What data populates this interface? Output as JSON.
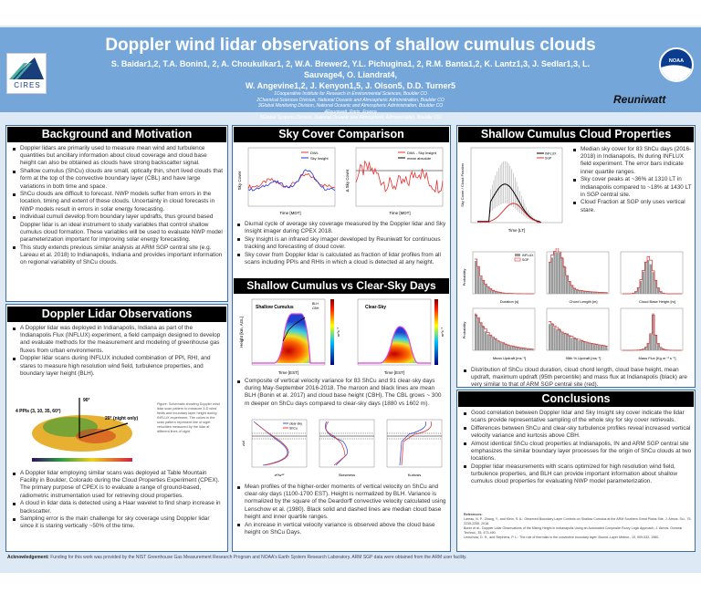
{
  "header": {
    "title": "Doppler wind lidar observations of shallow cumulus clouds",
    "authors_line1": "S. Baidar1,2, T.A. Bonin1, 2, A. Choukulkar1, 2, W.A. Brewer2, Y.L. Pichugina1, 2, R.M. Banta1,2, K. Lantz1,3, J. Sedlar1,3, L. Sauvage4, O. Liandrat4,",
    "authors_line2": "W. Angevine1,2, J. Kenyon1,5, J. Olson5, D.D. Turner5",
    "affiliations": [
      "1Cooperative Institute for Research in Environmental Sciences, Boulder CO",
      "2Chemical Sciences Division, National Oceanic and Atmospheric Administration, Boulder CO",
      "3Global Monitoring Division, National Oceanic and Atmospheric Administration, Boulder CO",
      "4Reuniwatt, Paris, France",
      "5Global Systems Division, National Oceanic and Atmospheric Administration, Boulder CO"
    ],
    "logos": {
      "cires": "CIRES",
      "noaa": "NOAA",
      "reuniwatt": "Reuniwatt"
    }
  },
  "background": {
    "title": "Background and Motivation",
    "bullets": [
      "Doppler lidars are primarily used to measure mean wind and turbulence quantities but ancillary information about cloud coverage and cloud base height can also be obtained as clouds have strong backscatter signal.",
      "Shallow cumulus (ShCu) clouds are small, optically thin, short lived clouds that form at the top of the convective boundary layer (CBL) and have large variations in both time and space.",
      "ShCu clouds are difficult to forecast. NWP models suffer from errors in the location, timing and extent of these clouds. Uncertainty in cloud forecasts in NWP models result in errors in solar energy forecasting.",
      "Individual cumuli develop from boundary layer updrafts, thus ground based Doppler lidar is an ideal instrument to study variables that control shallow cumulus cloud formation. These variables will be used to evaluate NWP model parameterization important for improving solar energy forecasting.",
      "This study extends previous similar analysis at ARM SGP central site (e.g. Lareau et al. 2018) to Indianapolis, Indiana and provides important information on regional variability of ShCu clouds."
    ]
  },
  "lidar": {
    "title": "Doppler Lidar Observations",
    "bullets_top": [
      "A Doppler lidar was deployed in Indianapolis, Indiana as part of the Indianapolis Flux (INFLUX) experiment, a field campaign designed to develop and evaluate methods for the measurement and modeling of greenhouse gas fluxes from urban environments.",
      "Doppler lidar scans during INFLUX included combination of PPI, RHI, and stares to measure high resolution wind field, turbulence properties, and boundary layer height (BLH)."
    ],
    "figure_labels": {
      "ppis": "4 PPIs (3, 10, 35, 60°)",
      "vertical": "90°",
      "night": "20° (night only)"
    },
    "caption": "Figure: Schematic showing Doppler wind lidar scan pattern to measure 3-D wind fields and boundary layer height during INFLUX experiment. The colors in the scan pattern represent line of sight velocities measured by the lidar at different lines of sight.",
    "bullets_bottom": [
      "A Doppler lidar employing similar scans was deployed at Table Mountain Facility in Boulder, Colorado during the Cloud Properties Experiment (CPEX). The primary purpose of CPEX is to evaluate a range of ground-based, radiometric instrumentation used for retrieving cloud properties.",
      "A cloud in lidar data is detected using a Haar wavelet to find sharp increase in backscatter.",
      "Sampling error is the main challenge for sky coverage using Doppler lidar since it is staring vertically ~50% of the time."
    ]
  },
  "skycover": {
    "title": "Sky Cover Comparison",
    "plot1": {
      "ylabel": "Sky Cover",
      "xlabel": "Time [MDT]",
      "legend": [
        "DWL",
        "Sky Insight"
      ]
    },
    "plot2": {
      "ylabel": "Δ Sky Cover",
      "xlabel": "Time [MDT]",
      "legend": [
        "DWL - Sky Insight",
        "mean absolute"
      ]
    },
    "bullets": [
      "Diurnal cycle of average sky coverage measured by the Doppler lidar and Sky Insight imager during CPEX 2018.",
      "Sky Insight is an infrared sky imager developed by Reuniwatt for continuous tracking and forecasting of cloud cover.",
      "Sky cover from Doppler lidar is calculated as fraction of lidar profiles from all scans including PPIs and RHIs in which a cloud is detected at any height."
    ]
  },
  "shcu_vs_clear": {
    "title": "Shallow Cumulus vs Clear-Sky Days",
    "plot1": {
      "label": "Shallow Cumulus",
      "legend": [
        "BLH",
        "CBH"
      ]
    },
    "plot2": {
      "label": "Clear-Sky"
    },
    "ylabel": "Height [km, AGL]",
    "xlabel": "Time [EST]",
    "cbar_label": "m²s⁻²",
    "bullet1": "Composite of vertical velocity variance for 83 ShCu and 91 clear-sky days during May-September 2016-2018. The maroon and black lines are mean BLH (Bonin et al. 2017) and cloud base height (CBH). The CBL grows ~ 300 m deeper on ShCu days compared to clear-sky days (1880 vs 1602 m).",
    "profiles": {
      "legend": [
        "clear-sky",
        "ShCu"
      ],
      "xlabels": [
        "σ²/w*²",
        "Skewness",
        "Kurtosis"
      ],
      "ylabel": "z/zi"
    },
    "bullets2": [
      "Mean profiles of the higher-order moments of vertical velocity on ShCu and clear-sky days (1100-1700 EST). Height is normalized by BLH. Variance is normalized by the square of the Deardorff convective velocity calculated using Lenschow et al. (1980). Black solid and dashed lines are median cloud base height and inner quartile ranges.",
      "An increase in vertical velocity variance is observed above the cloud base height on ShCu Days."
    ]
  },
  "cloudprops": {
    "title": "Shallow Cumulus Cloud Properties",
    "plot": {
      "ylabel": "Sky Cover / Cloud Fraction",
      "xlabel": "Time [LT]",
      "legend": [
        "INFLUX",
        "SGP"
      ]
    },
    "bullets": [
      "Median sky cover for 83 ShCu days (2016-2018) in Indianapolis, IN during INFLUX field experiment. The error bars indicate inner quartile ranges.",
      "Sky cover peaks at ~36% at 1310 LT in Indianapolis compared to ~18% at 1430 LT in SGP central site.",
      "Cloud Fraction at SGP only uses vertical stare."
    ],
    "hist_ylabel": "Probability",
    "hist_xlabels": [
      "Duration [s]",
      "Chord Length [m]",
      "Cloud Base Height [m]",
      "Mean Updraft [ms⁻¹]",
      "95th % Updraft [ms⁻¹]",
      "Mass Flux [Kg m⁻² s⁻¹]"
    ],
    "hist_legend": [
      "INFLUX",
      "SGP"
    ],
    "bullet2": "Distribution of ShCu cloud duration, cloud chord length, cloud base height, mean updraft, maximum updraft (95th percentile) and mass flux at Indianapolis (black) are very similar to that of ARM SGP central site (red)."
  },
  "conclusions": {
    "title": "Conclusions",
    "bullets": [
      "Good correlation between Doppler lidar and Sky Insight sky cover indicate the lidar scans provide representative sampling of the whole sky for sky cover retrievals.",
      "Differences between ShCu and clear-sky turbulence profiles reveal increased vertical velocity variance and kurtosis above CBH.",
      "Almost identical ShCu cloud properties at Indianapolis, IN and ARM SGP central site emphasizes the similar boundary layer processes for the origin of ShCu clouds at two locations.",
      "Doppler lidar measurements with scans optimized for high resolution wind field, turbulence properties, and BLH can provide important information about shallow cumulus cloud properties for evaluating NWP model parameterization."
    ],
    "references_title": "References:",
    "references": [
      "Lareau, N. P., Zhang, Y., and Klein, S. A.: Observed Boundary Layer Controls on Shallow Cumulus at the ARM Southern Great Plains Site, J. Atmos. Sci., 75, 2235-2255, 2018.",
      "Bonin et al.: Doppler Lidar Observations of the Mixing Height in Indianapolis Using an Automated Composite Fuzzy Logic Approach, J. Atmos. Oceanic Technol., 35, 473-490.",
      "Lenschow, D. H., and Stephens, P. L.: The role of thermals in the convective boundary layer. Bound.-Layer Meteor., 19, 509-532, 1980."
    ]
  },
  "acknowledgement": {
    "label": "Acknowledgement:",
    "text": " Funding for this work was provided by the NIST Greenhouse Gas Measurement Research Program and NOAA's Earth System Research Laboratory. ARM SGP data were obtained from the ARM user facility."
  },
  "colors": {
    "header": "#74a6da",
    "background": "#dde9f5",
    "section_bar": "#000000",
    "dwl": "#e83030",
    "sky_insight": "#2030e0"
  }
}
